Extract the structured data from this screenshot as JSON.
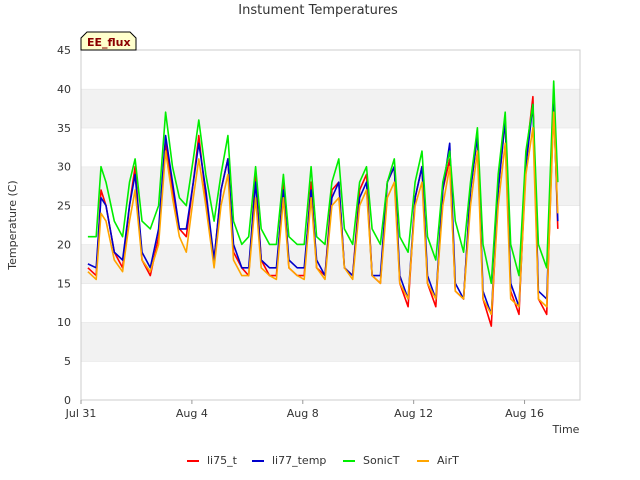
{
  "chart_data": {
    "type": "line",
    "title": "Instument Temperatures",
    "xlabel": "Time",
    "ylabel": "Temperature (C)",
    "badge": "EE_flux",
    "ylim": [
      0,
      45
    ],
    "xlim": [
      0,
      18.0
    ],
    "y_ticks": [
      0,
      5,
      10,
      15,
      20,
      25,
      30,
      35,
      40,
      45
    ],
    "x_ticks": [
      {
        "x": 0,
        "label": "Jul 31"
      },
      {
        "x": 4,
        "label": "Aug 4"
      },
      {
        "x": 8,
        "label": "Aug 8"
      },
      {
        "x": 12,
        "label": "Aug 12"
      },
      {
        "x": 16,
        "label": "Aug 16"
      }
    ],
    "grid": "horizontal-bands",
    "legend_position": "bottom",
    "colors": {
      "li75_t": "#ff0000",
      "li77_temp": "#0000cc",
      "SonicT": "#00ee00",
      "AirT": "#ffa500"
    },
    "series": [
      {
        "name": "li75_t",
        "color": "#ff0000",
        "x": [
          0.25,
          0.55,
          0.72,
          0.9,
          1.2,
          1.5,
          1.75,
          1.95,
          2.2,
          2.5,
          2.8,
          3.05,
          3.3,
          3.55,
          3.8,
          4.05,
          4.25,
          4.5,
          4.8,
          5.05,
          5.3,
          5.5,
          5.8,
          6.05,
          6.3,
          6.5,
          6.8,
          7.05,
          7.3,
          7.5,
          7.8,
          8.05,
          8.3,
          8.5,
          8.8,
          9.05,
          9.3,
          9.5,
          9.8,
          10.05,
          10.3,
          10.5,
          10.8,
          11.05,
          11.3,
          11.5,
          11.8,
          12.05,
          12.3,
          12.5,
          12.8,
          13.05,
          13.3,
          13.5,
          13.8,
          14.05,
          14.3,
          14.5,
          14.8,
          15.05,
          15.3,
          15.5,
          15.8,
          16.05,
          16.3,
          16.5,
          16.8,
          17.05,
          17.2
        ],
        "y": [
          17.0,
          16.0,
          27.0,
          25.0,
          19.0,
          17.0,
          25.0,
          30.0,
          18.0,
          16.0,
          21.0,
          33.0,
          27.0,
          22.0,
          21.0,
          28.0,
          34.0,
          26.0,
          18.0,
          27.0,
          31.0,
          19.0,
          17.0,
          16.0,
          29.0,
          18.0,
          16.0,
          16.0,
          28.0,
          17.0,
          16.0,
          16.0,
          28.0,
          17.0,
          16.0,
          27.0,
          28.0,
          17.0,
          16.0,
          27.0,
          29.0,
          16.0,
          15.0,
          28.0,
          30.0,
          15.0,
          12.0,
          26.0,
          30.0,
          15.0,
          12.0,
          27.0,
          31.0,
          14.0,
          13.0,
          27.0,
          34.0,
          13.0,
          9.5,
          27.0,
          36.0,
          14.0,
          11.0,
          31.0,
          39.0,
          13.0,
          11.0,
          39.0,
          22.0
        ]
      },
      {
        "name": "li77_temp",
        "color": "#0000cc",
        "x": [
          0.25,
          0.55,
          0.72,
          0.9,
          1.2,
          1.5,
          1.75,
          1.95,
          2.2,
          2.5,
          2.8,
          3.05,
          3.3,
          3.55,
          3.8,
          4.05,
          4.25,
          4.5,
          4.8,
          5.05,
          5.3,
          5.5,
          5.8,
          6.05,
          6.3,
          6.5,
          6.8,
          7.05,
          7.3,
          7.5,
          7.8,
          8.05,
          8.3,
          8.5,
          8.8,
          9.05,
          9.3,
          9.5,
          9.8,
          10.05,
          10.3,
          10.5,
          10.8,
          11.05,
          11.3,
          11.5,
          11.8,
          12.05,
          12.3,
          12.5,
          12.8,
          13.05,
          13.3,
          13.5,
          13.8,
          14.05,
          14.3,
          14.5,
          14.8,
          15.05,
          15.3,
          15.5,
          15.8,
          16.05,
          16.3,
          16.5,
          16.8,
          17.05,
          17.2
        ],
        "y": [
          17.5,
          17.0,
          26.0,
          25.0,
          19.0,
          18.0,
          25.0,
          29.0,
          19.0,
          17.0,
          22.0,
          34.0,
          28.0,
          22.0,
          22.0,
          28.0,
          33.0,
          27.0,
          18.0,
          27.0,
          31.0,
          20.0,
          17.0,
          17.0,
          28.0,
          18.0,
          17.0,
          17.0,
          27.0,
          18.0,
          17.0,
          17.0,
          27.0,
          18.0,
          16.0,
          26.0,
          28.0,
          17.0,
          16.0,
          26.0,
          28.0,
          16.0,
          16.0,
          28.0,
          30.0,
          16.0,
          13.0,
          26.0,
          30.0,
          16.0,
          13.0,
          27.0,
          33.0,
          15.0,
          13.0,
          27.0,
          34.0,
          14.0,
          11.0,
          27.0,
          36.0,
          15.0,
          12.0,
          30.0,
          38.0,
          14.0,
          13.0,
          38.0,
          23.0
        ]
      },
      {
        "name": "SonicT",
        "color": "#00ee00",
        "x": [
          0.25,
          0.55,
          0.72,
          0.9,
          1.2,
          1.5,
          1.75,
          1.95,
          2.2,
          2.5,
          2.8,
          3.05,
          3.3,
          3.55,
          3.8,
          4.05,
          4.25,
          4.5,
          4.8,
          5.05,
          5.3,
          5.5,
          5.8,
          6.05,
          6.3,
          6.5,
          6.8,
          7.05,
          7.3,
          7.5,
          7.8,
          8.05,
          8.3,
          8.5,
          8.8,
          9.05,
          9.3,
          9.5,
          9.8,
          10.05,
          10.3,
          10.5,
          10.8,
          11.05,
          11.3,
          11.5,
          11.8,
          12.05,
          12.3,
          12.5,
          12.8,
          13.05,
          13.3,
          13.5,
          13.8,
          14.05,
          14.3,
          14.5,
          14.8,
          15.05,
          15.3,
          15.5,
          15.8,
          16.05,
          16.3,
          16.5,
          16.8,
          17.05,
          17.2
        ],
        "y": [
          21.0,
          21.0,
          30.0,
          28.0,
          23.0,
          21.0,
          28.0,
          31.0,
          23.0,
          22.0,
          25.0,
          37.0,
          30.0,
          26.0,
          25.0,
          31.0,
          36.0,
          29.0,
          23.0,
          29.0,
          34.0,
          23.0,
          20.0,
          21.0,
          30.0,
          22.0,
          20.0,
          20.0,
          29.0,
          21.0,
          20.0,
          20.0,
          30.0,
          21.0,
          20.0,
          28.0,
          31.0,
          22.0,
          20.0,
          28.0,
          30.0,
          22.0,
          20.0,
          28.0,
          31.0,
          21.0,
          19.0,
          28.0,
          32.0,
          21.0,
          18.0,
          28.0,
          32.0,
          23.0,
          19.0,
          28.0,
          35.0,
          20.0,
          15.0,
          29.0,
          37.0,
          20.0,
          16.0,
          32.0,
          38.0,
          20.0,
          17.0,
          41.0,
          28.0
        ]
      },
      {
        "name": "AirT",
        "color": "#ffa500",
        "x": [
          0.25,
          0.55,
          0.72,
          0.9,
          1.2,
          1.5,
          1.75,
          1.95,
          2.2,
          2.5,
          2.8,
          3.05,
          3.3,
          3.55,
          3.8,
          4.05,
          4.25,
          4.5,
          4.8,
          5.05,
          5.3,
          5.5,
          5.8,
          6.05,
          6.3,
          6.5,
          6.8,
          7.05,
          7.3,
          7.5,
          7.8,
          8.05,
          8.3,
          8.5,
          8.8,
          9.05,
          9.3,
          9.5,
          9.8,
          10.05,
          10.3,
          10.5,
          10.8,
          11.05,
          11.3,
          11.5,
          11.8,
          12.05,
          12.3,
          12.5,
          12.8,
          13.05,
          13.3,
          13.5,
          13.8,
          14.05,
          14.3,
          14.5,
          14.8,
          15.05,
          15.3,
          15.5,
          15.8,
          16.05,
          16.3,
          16.5,
          16.8,
          17.05,
          17.2
        ],
        "y": [
          16.5,
          15.5,
          24.0,
          23.0,
          18.0,
          16.5,
          23.0,
          27.0,
          18.0,
          16.5,
          20.0,
          32.0,
          26.0,
          21.0,
          19.0,
          26.0,
          31.0,
          25.0,
          17.0,
          25.0,
          29.0,
          18.0,
          16.0,
          16.0,
          26.0,
          17.0,
          16.0,
          15.5,
          26.0,
          17.0,
          16.0,
          15.5,
          26.0,
          17.0,
          15.5,
          25.0,
          26.0,
          17.0,
          15.5,
          25.0,
          27.0,
          16.0,
          15.0,
          26.0,
          28.0,
          15.0,
          13.0,
          25.0,
          28.0,
          15.0,
          13.0,
          25.0,
          30.0,
          14.0,
          13.0,
          25.0,
          32.0,
          13.0,
          11.0,
          25.0,
          33.0,
          13.0,
          12.0,
          29.0,
          35.0,
          13.0,
          12.0,
          37.0,
          24.0
        ]
      }
    ]
  }
}
